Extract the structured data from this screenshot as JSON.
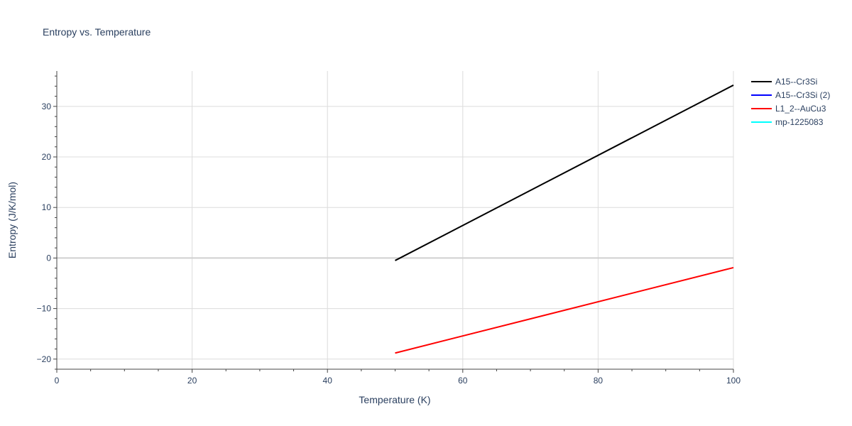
{
  "chart_data": {
    "type": "line",
    "title": "Entropy vs. Temperature",
    "xlabel": "Temperature (K)",
    "ylabel": "Entropy (J/K/mol)",
    "xlim": [
      0,
      100
    ],
    "ylim": [
      -22,
      37
    ],
    "x_ticks": [
      0,
      20,
      40,
      60,
      80,
      100
    ],
    "y_ticks": [
      -20,
      -10,
      0,
      10,
      20,
      30
    ],
    "y_tick_labels": [
      "−20",
      "−10",
      "0",
      "10",
      "20",
      "30"
    ],
    "grid": true,
    "legend_position": "top-right",
    "series": [
      {
        "name": "A15--Cr3Si",
        "color": "#000000",
        "x": [
          50,
          100
        ],
        "y": [
          -0.5,
          34.2
        ]
      },
      {
        "name": "A15--Cr3Si (2)",
        "color": "#0000ff",
        "x": [],
        "y": []
      },
      {
        "name": "L1_2--AuCu3",
        "color": "#ff0000",
        "x": [
          50,
          100
        ],
        "y": [
          -18.8,
          -1.9
        ]
      },
      {
        "name": "mp-1225083",
        "color": "#00ffff",
        "x": [],
        "y": []
      }
    ]
  }
}
